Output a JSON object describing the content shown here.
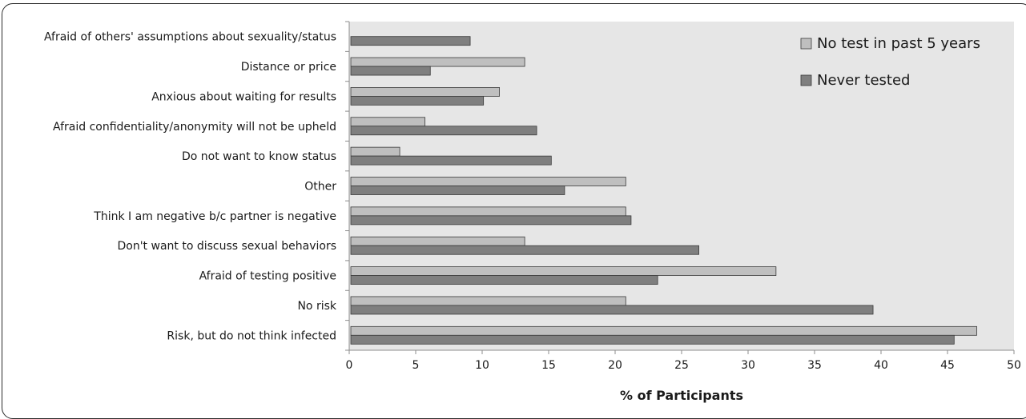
{
  "chart_data": {
    "type": "bar",
    "orientation": "horizontal",
    "title": "",
    "xlabel": "% of Participants",
    "ylabel": "",
    "xlim": [
      0,
      50
    ],
    "x_ticks": [
      0,
      5,
      10,
      15,
      20,
      25,
      30,
      35,
      40,
      45,
      50
    ],
    "grid": false,
    "legend_position": "top-right",
    "categories": [
      "Risk, but do not think infected",
      "No risk",
      "Afraid of testing positive",
      "Don't want to discuss sexual behaviors",
      "Think I am negative b/c partner is negative",
      "Other",
      "Do not want to know status",
      "Afraid confidentiality/anonymity will not be upheld",
      "Anxious about waiting for results",
      "Distance or price",
      "Afraid of others' assumptions about sexuality/status"
    ],
    "series": [
      {
        "name": "No test in past 5 years",
        "color": "#bfbfbf",
        "values": [
          47.2,
          20.8,
          32.1,
          13.2,
          20.8,
          20.8,
          3.8,
          5.7,
          11.3,
          13.2,
          null
        ]
      },
      {
        "name": "Never tested",
        "color": "#7f7f7f",
        "values": [
          45.5,
          39.4,
          23.2,
          26.3,
          21.2,
          16.2,
          15.2,
          14.1,
          10.1,
          6.1,
          9.1
        ]
      }
    ]
  }
}
